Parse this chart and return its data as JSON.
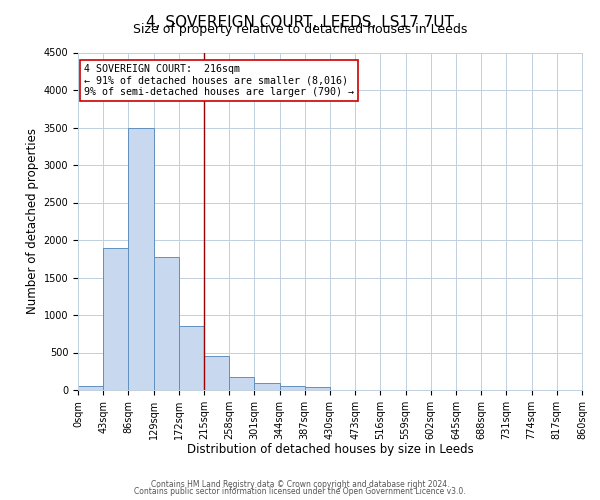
{
  "title": "4, SOVEREIGN COURT, LEEDS, LS17 7UT",
  "subtitle": "Size of property relative to detached houses in Leeds",
  "xlabel": "Distribution of detached houses by size in Leeds",
  "ylabel": "Number of detached properties",
  "bar_color": "#c8d8ee",
  "bar_edge_color": "#6090c0",
  "bin_edges": [
    0,
    43,
    86,
    129,
    172,
    215,
    258,
    301,
    344,
    387,
    430,
    473,
    516,
    559,
    602,
    645,
    688,
    731,
    774,
    817,
    860
  ],
  "bin_labels": [
    "0sqm",
    "43sqm",
    "86sqm",
    "129sqm",
    "172sqm",
    "215sqm",
    "258sqm",
    "301sqm",
    "344sqm",
    "387sqm",
    "430sqm",
    "473sqm",
    "516sqm",
    "559sqm",
    "602sqm",
    "645sqm",
    "688sqm",
    "731sqm",
    "774sqm",
    "817sqm",
    "860sqm"
  ],
  "bar_heights": [
    50,
    1900,
    3500,
    1780,
    860,
    460,
    175,
    95,
    55,
    35,
    0,
    0,
    0,
    0,
    0,
    0,
    0,
    0,
    0,
    0
  ],
  "ylim": [
    0,
    4500
  ],
  "yticks": [
    0,
    500,
    1000,
    1500,
    2000,
    2500,
    3000,
    3500,
    4000,
    4500
  ],
  "vline_x": 215,
  "annotation_title": "4 SOVEREIGN COURT:  216sqm",
  "annotation_line1": "← 91% of detached houses are smaller (8,016)",
  "annotation_line2": "9% of semi-detached houses are larger (790) →",
  "annotation_box_color": "#ffffff",
  "annotation_box_edge_color": "#cc0000",
  "vline_color": "#990000",
  "footer1": "Contains HM Land Registry data © Crown copyright and database right 2024.",
  "footer2": "Contains public sector information licensed under the Open Government Licence v3.0.",
  "background_color": "#ffffff",
  "grid_color": "#c0d0e0",
  "title_fontsize": 11,
  "subtitle_fontsize": 9,
  "axis_label_fontsize": 8.5,
  "tick_fontsize": 7
}
